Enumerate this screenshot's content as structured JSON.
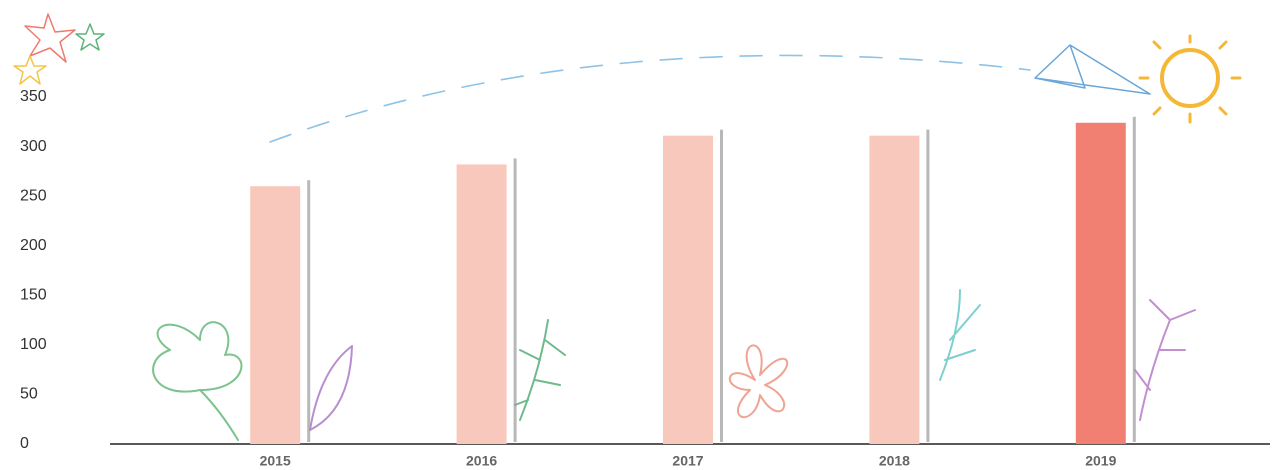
{
  "chart_data": {
    "type": "bar",
    "categories": [
      "2015",
      "2016",
      "2017",
      "2018",
      "2019"
    ],
    "values": [
      260,
      282,
      311,
      311,
      324
    ],
    "colors": [
      "#f9c8bc",
      "#f9c8bc",
      "#f9c8bc",
      "#f9c8bc",
      "#f28072"
    ],
    "ylim": [
      0,
      350
    ],
    "yticks": [
      0,
      50,
      100,
      150,
      200,
      250,
      300,
      350
    ],
    "grid": false
  }
}
